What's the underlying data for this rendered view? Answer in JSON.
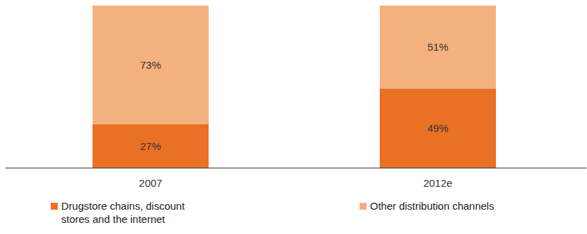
{
  "chart_data": {
    "type": "bar",
    "stacked": true,
    "data_labels": true,
    "tick_labels": "x",
    "legend": "bottom",
    "categories": [
      "2007",
      "2012e"
    ],
    "ylim": [
      0,
      100
    ],
    "series": [
      {
        "name": "Drugstore chains, discount stores and the internet",
        "color": "#e97124",
        "values": [
          27,
          49
        ],
        "value_labels": [
          "27%",
          "49%"
        ]
      },
      {
        "name": "Other distribution channels",
        "color": "#f5b07f",
        "values": [
          73,
          51
        ],
        "value_labels": [
          "73%",
          "51%"
        ]
      }
    ]
  }
}
